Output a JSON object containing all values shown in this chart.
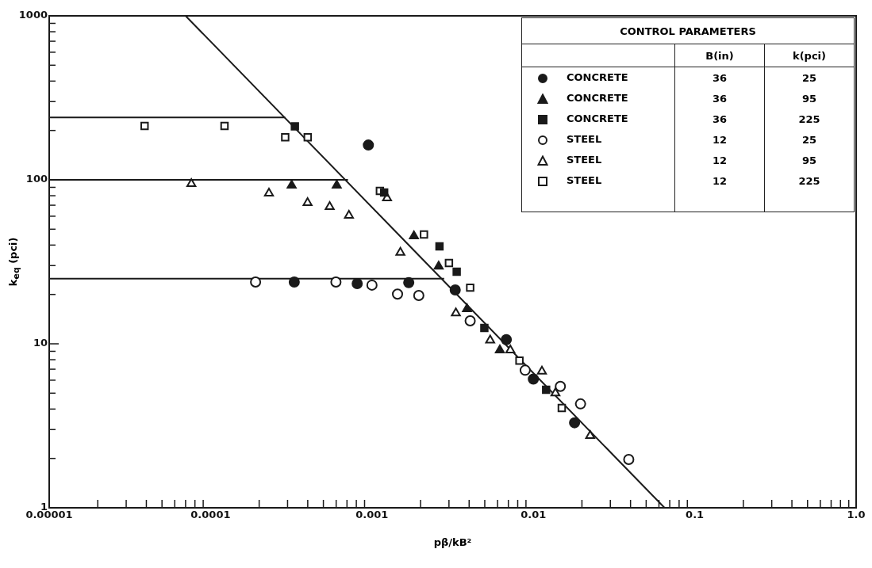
{
  "chart_data": {
    "type": "scatter",
    "xlabel": "pβ/kB²",
    "ylabel": "k$_{eq}$ (pci)",
    "legend_title": "CONTROL PARAMETERS",
    "legend": "top right",
    "log": "xy",
    "grid": false,
    "annotations": [
      "B(in)",
      "k(pci)",
      "36",
      "25",
      "36",
      "95",
      "36",
      "225",
      "12",
      "25",
      "12",
      "95",
      "12",
      "225"
    ],
    "xlim": [
      1e-05,
      1
    ],
    "ylim": [
      1,
      1000
    ],
    "xticks": [
      {
        "value": 1e-05,
        "label": "0.00001"
      },
      {
        "value": 2e-05,
        "label": null
      },
      {
        "value": 3e-05,
        "label": null
      },
      {
        "value": 4e-05,
        "label": null
      },
      {
        "value": 5e-05,
        "label": null
      },
      {
        "value": 6e-05,
        "label": null
      },
      {
        "value": 7e-05,
        "label": null
      },
      {
        "value": 8e-05,
        "label": null
      },
      {
        "value": 9e-05,
        "label": null
      },
      0.0001,
      {
        "value": 0.0002,
        "label": null
      },
      {
        "value": 0.0003,
        "label": null
      },
      {
        "value": 0.0004,
        "label": null
      },
      {
        "value": 0.0005,
        "label": null
      },
      {
        "value": 0.0006,
        "label": null
      },
      {
        "value": 0.0007,
        "label": null
      },
      {
        "value": 0.0008,
        "label": null
      },
      {
        "value": 0.0009,
        "label": null
      },
      0.001,
      {
        "value": 0.002,
        "label": null
      },
      {
        "value": 0.003,
        "label": null
      },
      {
        "value": 0.004,
        "label": null
      },
      {
        "value": 0.005,
        "label": null
      },
      {
        "value": 0.006,
        "label": null
      },
      {
        "value": 0.007,
        "label": null
      },
      {
        "value": 0.008,
        "label": null
      },
      {
        "value": 0.009,
        "label": null
      },
      0.01,
      {
        "value": 0.02,
        "label": null
      },
      {
        "value": 0.03,
        "label": null
      },
      {
        "value": 0.04,
        "label": null
      },
      {
        "value": 0.05,
        "label": null
      },
      {
        "value": 0.06,
        "label": null
      },
      {
        "value": 0.07,
        "label": null
      },
      {
        "value": 0.08,
        "label": null
      },
      {
        "value": 0.09,
        "label": null
      },
      0.1,
      {
        "value": 0.2,
        "label": null
      },
      {
        "value": 0.3,
        "label": null
      },
      {
        "value": 0.4,
        "label": null
      },
      {
        "value": 0.5,
        "label": null
      },
      {
        "value": 0.6,
        "label": null
      },
      {
        "value": 0.7,
        "label": null
      },
      {
        "value": 0.8,
        "label": null
      },
      {
        "value": 0.9,
        "label": null
      },
      {
        "value": 1,
        "label": "1.0"
      }
    ],
    "yticks": [
      1,
      {
        "value": 2,
        "label": null
      },
      {
        "value": 3,
        "label": null
      },
      {
        "value": 4,
        "label": null
      },
      {
        "value": 5,
        "label": null
      },
      {
        "value": 6,
        "label": null
      },
      {
        "value": 7,
        "label": null
      },
      {
        "value": 8,
        "label": null
      },
      {
        "value": 9,
        "label": null
      },
      10,
      {
        "value": 20,
        "label": null
      },
      {
        "value": 30,
        "label": null
      },
      {
        "value": 40,
        "label": null
      },
      {
        "value": 50,
        "label": null
      },
      {
        "value": 60,
        "label": null
      },
      {
        "value": 70,
        "label": null
      },
      {
        "value": 80,
        "label": null
      },
      {
        "value": 90,
        "label": null
      },
      100,
      {
        "value": 200,
        "label": null
      },
      {
        "value": 300,
        "label": null
      },
      {
        "value": 400,
        "label": null
      },
      {
        "value": 500,
        "label": null
      },
      {
        "value": 600,
        "label": null
      },
      {
        "value": 700,
        "label": null
      },
      {
        "value": 800,
        "label": null
      },
      {
        "value": 900,
        "label": null
      },
      1000
    ],
    "series": [
      {
        "name": "CONCRETE",
        "marker": "circle",
        "color": "#1a1a1a",
        "x": [
          0.00095,
          0.00033,
          0.00081,
          0.00169,
          0.00328,
          0.0068,
          0.01,
          0.018
        ],
        "values": [
          163,
          23.8,
          23.3,
          23.6,
          21.3,
          10.6,
          6.1,
          3.3
        ]
      },
      {
        "name": "CONCRETE",
        "marker": "triangle",
        "color": "#1a1a1a",
        "x": [
          0.000318,
          0.000605,
          0.00182,
          0.00259,
          0.00388,
          0.0062
        ],
        "values": [
          92.5,
          92.5,
          45.4,
          29.7,
          16.3,
          9.15
        ]
      },
      {
        "name": "CONCRETE",
        "marker": "square",
        "color": "#1a1a1a",
        "x": [
          0.000333,
          0.00119,
          0.00262,
          0.00335,
          0.00497,
          0.012
        ],
        "values": [
          212,
          83.7,
          39.3,
          27.5,
          12.5,
          5.25
        ]
      },
      {
        "name": "STEEL",
        "marker": "circle",
        "color": "#ffffff",
        "x": [
          0.00019,
          0.000598,
          0.001,
          0.00144,
          0.00195,
          0.00406,
          0.0089,
          0.0147,
          0.0196,
          0.039
        ],
        "values": [
          23.8,
          23.8,
          22.8,
          20.1,
          19.7,
          13.8,
          6.9,
          5.5,
          4.3,
          1.97
        ]
      },
      {
        "name": "STEEL",
        "marker": "triangle",
        "color": "#ffffff",
        "x": [
          7.6e-05,
          0.00023,
          0.000399,
          0.000547,
          0.00072,
          0.00124,
          0.0015,
          0.00331,
          0.0054,
          0.0072,
          0.0113,
          0.0137,
          0.0225
        ],
        "values": [
          94.6,
          82.8,
          72.4,
          68.5,
          60.6,
          77.4,
          36,
          15.4,
          10.5,
          9.15,
          6.8,
          5,
          2.75
        ]
      },
      {
        "name": "STEEL",
        "marker": "square",
        "color": "#ffffff",
        "x": [
          3.9e-05,
          0.000122,
          0.00029,
          0.0004,
          0.00112,
          0.0021,
          0.003,
          0.00406,
          0.0082,
          0.015
        ],
        "values": [
          213,
          213,
          182,
          182,
          85.5,
          46.4,
          31.1,
          22,
          7.9,
          4.06
        ]
      },
      {
        "type": "line",
        "marker": "none",
        "color": "#1a1a1a",
        "x": [
          7e-05,
          0.065
        ],
        "values": [
          1000,
          1
        ]
      },
      {
        "type": "line",
        "marker": "none",
        "color": "#1a1a1a",
        "x": [
          1e-05,
          0.00029
        ],
        "values": [
          240,
          240
        ]
      },
      {
        "type": "line",
        "marker": "none",
        "color": "#1a1a1a",
        "x": [
          1e-05,
          0.00071
        ],
        "values": [
          100,
          100
        ]
      },
      {
        "type": "line",
        "marker": "none",
        "color": "#1a1a1a",
        "x": [
          1e-05,
          0.0028
        ],
        "values": [
          25,
          25
        ]
      }
    ]
  }
}
